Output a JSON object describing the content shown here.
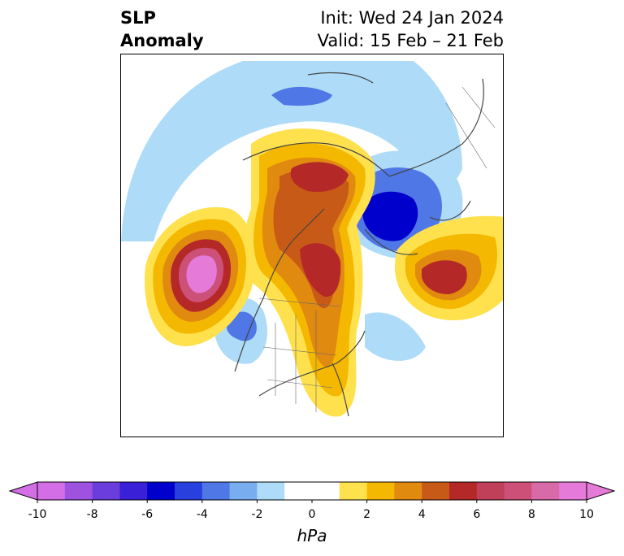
{
  "title": {
    "left_line1": "SLP",
    "left_line2": "Anomaly",
    "init": "Init: Wed 24 Jan 2024",
    "valid": "Valid: 15 Feb – 21 Feb"
  },
  "colorbar": {
    "unit": "hPa",
    "ticks": [
      "-10",
      "-8",
      "-6",
      "-4",
      "-2",
      "0",
      "2",
      "4",
      "6",
      "8",
      "10"
    ],
    "colors": [
      "#d46ee6",
      "#9d52e0",
      "#6b3ddc",
      "#3a20d6",
      "#0000cc",
      "#2840dd",
      "#5077e6",
      "#78aef0",
      "#aedcf8",
      "#ffffff",
      "#ffffff",
      "#ffe14d",
      "#f5b800",
      "#e08a10",
      "#c85a18",
      "#b52828",
      "#c0405a",
      "#cc5078",
      "#d86aa8",
      "#e67ad8"
    ]
  },
  "map": {
    "legend_note": "",
    "colors": {
      "neg_light": "#aedcf8",
      "neg_mid": "#5077e6",
      "neg_dark": "#0000cc",
      "pos1": "#ffe14d",
      "pos2": "#f5b800",
      "pos3": "#e08a10",
      "pos4": "#c85a18",
      "pos5": "#b52828",
      "pos6": "#c0405a",
      "pos7": "#cc5078",
      "pos8": "#e67ad8",
      "coast": "#444444"
    }
  }
}
